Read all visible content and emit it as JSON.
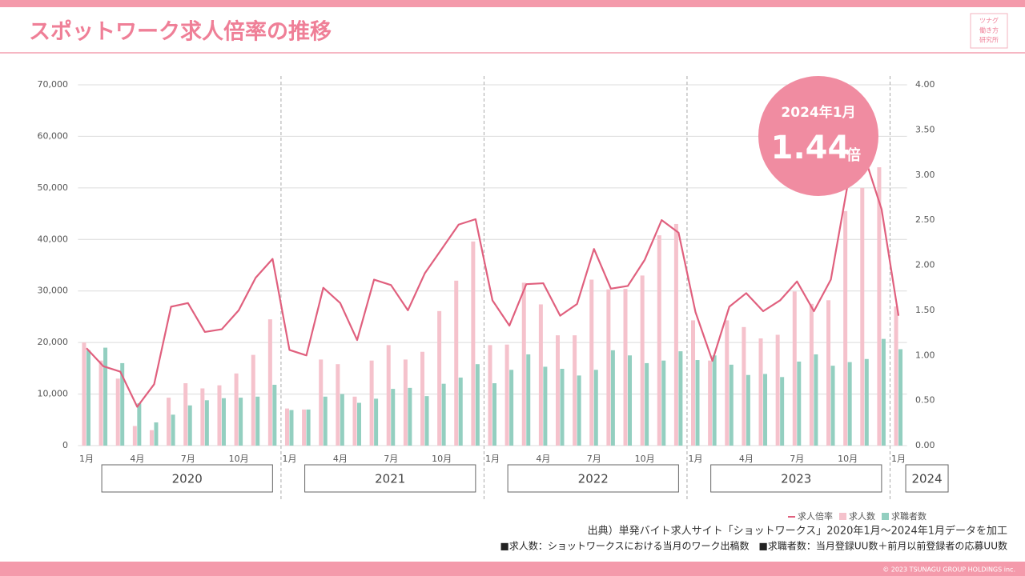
{
  "header": {
    "title": "スポットワーク求人倍率の推移",
    "logo": [
      "ツナグ",
      "働き方",
      "研究所"
    ]
  },
  "chart_data": {
    "type": "bar",
    "categories": [
      "1月",
      null,
      null,
      "4月",
      null,
      null,
      "7月",
      null,
      null,
      "10月",
      null,
      null,
      "1月",
      null,
      null,
      "4月",
      null,
      null,
      "7月",
      null,
      null,
      "10月",
      null,
      null,
      "1月",
      null,
      null,
      "4月",
      null,
      null,
      "7月",
      null,
      null,
      "10月",
      null,
      null,
      "1月",
      null,
      null,
      "4月",
      null,
      null,
      "7月",
      null,
      null,
      "10月",
      null,
      null,
      "1月"
    ],
    "years": [
      "2020",
      "2021",
      "2022",
      "2023",
      "2024"
    ],
    "series": [
      {
        "name": "求人数",
        "type": "bar",
        "color": "#f5c2cc",
        "values": [
          20000,
          16500,
          13000,
          3800,
          3000,
          9300,
          12100,
          11100,
          11700,
          14000,
          17600,
          24500,
          7200,
          7000,
          16700,
          15800,
          9500,
          16500,
          19500,
          16700,
          18200,
          26100,
          32000,
          39600,
          19500,
          19600,
          31600,
          27400,
          21400,
          21400,
          32200,
          30300,
          30400,
          33000,
          40800,
          43000,
          24300,
          16500,
          24300,
          23000,
          20800,
          21500,
          29900,
          27500,
          28200,
          45500,
          50000,
          54000,
          27000
        ]
      },
      {
        "name": "求職者数",
        "type": "bar",
        "color": "#93cfc0",
        "values": [
          18500,
          19000,
          16000,
          8200,
          4500,
          6000,
          7800,
          8800,
          9200,
          9300,
          9500,
          11800,
          6900,
          7000,
          9500,
          10000,
          8300,
          9100,
          11000,
          11200,
          9600,
          12000,
          13200,
          15800,
          12100,
          14700,
          17700,
          15300,
          14900,
          13600,
          14700,
          18500,
          17500,
          16000,
          16500,
          18300,
          16600,
          17500,
          15700,
          13700,
          13900,
          13300,
          16300,
          17700,
          15500,
          16200,
          16800,
          20700,
          18700
        ]
      },
      {
        "name": "求人倍率",
        "type": "line",
        "axis": "y2",
        "color": "#e0607e",
        "values": [
          1.08,
          0.88,
          0.82,
          0.43,
          0.68,
          1.54,
          1.58,
          1.26,
          1.29,
          1.5,
          1.86,
          2.07,
          1.06,
          1.0,
          1.75,
          1.58,
          1.17,
          1.84,
          1.78,
          1.5,
          1.91,
          2.18,
          2.45,
          2.51,
          1.61,
          1.33,
          1.79,
          1.8,
          1.44,
          1.57,
          2.18,
          1.74,
          1.77,
          2.06,
          2.5,
          2.36,
          1.48,
          0.94,
          1.54,
          1.69,
          1.49,
          1.61,
          1.82,
          1.49,
          1.84,
          2.9,
          3.2,
          2.62,
          1.44
        ]
      }
    ],
    "ylim": [
      0,
      70000
    ],
    "yticks": [
      0,
      {
        "value": 10000,
        "label": "10,000"
      },
      {
        "value": 20000,
        "label": "20,000"
      },
      {
        "value": 30000,
        "label": "30,000"
      },
      {
        "value": 40000,
        "label": "40,000"
      },
      {
        "value": 50000,
        "label": "50,000"
      },
      {
        "value": 60000,
        "label": "60,000"
      },
      {
        "value": 70000,
        "label": "70,000"
      }
    ],
    "y2lim": [
      0,
      4
    ],
    "y2ticks": [
      {
        "value": 0,
        "label": "0.00"
      },
      {
        "value": 0.5,
        "label": "0.50"
      },
      {
        "value": 1,
        "label": "1.00"
      },
      {
        "value": 1.5,
        "label": "1.50"
      },
      {
        "value": 2,
        "label": "2.00"
      },
      {
        "value": 2.5,
        "label": "2.50"
      },
      {
        "value": 3,
        "label": "3.00"
      },
      {
        "value": 3.5,
        "label": "3.50"
      },
      {
        "value": 4,
        "label": "4.00"
      }
    ],
    "grid": true,
    "legend": "bottom-right",
    "annotation": {
      "date": "2024年1月",
      "value": "1.44",
      "unit": "倍",
      "color": "#f08ca1"
    }
  },
  "notes": [
    "出典）単発バイト求人サイト「ショットワークス」2020年1月～2024年1月データを加工",
    "■求人数：ショットワークスにおける当月のワーク出稿数　■求職者数：当月登録UU数＋前月以前登録者の応募UU数"
  ],
  "footer": "© 2023 TSUNAGU GROUP HOLDINGS inc."
}
